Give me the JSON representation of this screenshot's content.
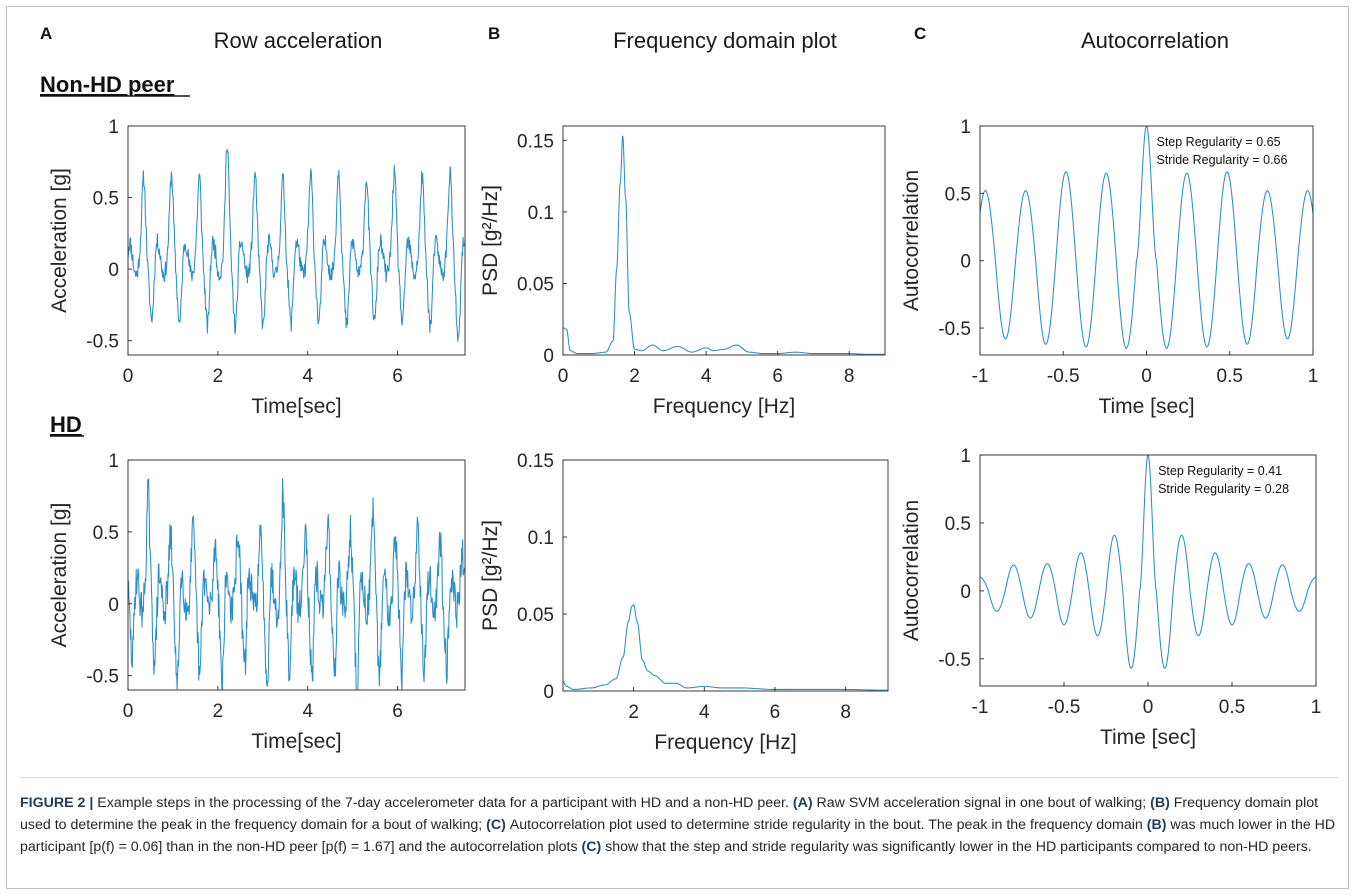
{
  "figure": {
    "caption_head": "FIGURE 2 |",
    "caption_parts": [
      {
        "t": "Example steps in the processing of the 7-day accelerometer data for a participant with HD and a non-HD peer. ",
        "b": false
      },
      {
        "t": "(A)",
        "b": true
      },
      {
        "t": " Raw SVM acceleration signal in one bout of walking; ",
        "b": false
      },
      {
        "t": "(B)",
        "b": true
      },
      {
        "t": " Frequency domain plot used to determine the peak in the frequency domain for a bout of walking; ",
        "b": false
      },
      {
        "t": "(C)",
        "b": true
      },
      {
        "t": " Autocorrelation plot used to determine stride regularity in the bout. The peak in the frequency domain ",
        "b": false
      },
      {
        "t": "(B)",
        "b": true
      },
      {
        "t": " was much lower in the HD participant [p(f) = 0.06] than in the non-HD peer [p(f) = 1.67] and the autocorrelation plots ",
        "b": false
      },
      {
        "t": "(C)",
        "b": true
      },
      {
        "t": " show that the step and stride regularity was significantly lower in the HD participants compared to non-HD peers.",
        "b": false
      }
    ]
  },
  "panels": {
    "A": {
      "letter": "A",
      "title": "Row acceleration"
    },
    "B": {
      "letter": "B",
      "title": "Frequency domain plot"
    },
    "C": {
      "letter": "C",
      "title": "Autocorrelation"
    }
  },
  "groups": {
    "top": "Non-HD peer",
    "bottom": "HD"
  },
  "colors": {
    "series": "#2a8ec6",
    "axes": "#262626"
  },
  "chart_data": [
    {
      "id": "acc_nonhd",
      "type": "line",
      "row": "top",
      "col": "A",
      "xlabel": "Time[sec]",
      "ylabel": "Acceleration [g]",
      "xlim": [
        0,
        7.5
      ],
      "ylim": [
        -0.6,
        1
      ],
      "xticks": [
        0,
        2,
        4,
        6
      ],
      "xtick_labels": [
        "0",
        "2",
        "4",
        "6"
      ],
      "yticks": [
        -0.5,
        0,
        0.5,
        1
      ],
      "ytick_labels": [
        "-0.5",
        "0",
        "0.5",
        "1"
      ],
      "signal": {
        "kind": "periodic",
        "period": 0.62,
        "t0": 0.35,
        "noise": 0.06,
        "seed": 11,
        "peaks": [
          0.52,
          0.55,
          0.53,
          0.78,
          0.55,
          0.52,
          0.55,
          0.58,
          0.52,
          0.56,
          0.53,
          0.57
        ],
        "troughs": [
          -0.27,
          -0.3,
          -0.32,
          -0.33,
          -0.32,
          -0.3,
          -0.3,
          -0.32,
          -0.29,
          -0.3,
          -0.32,
          -0.44
        ]
      }
    },
    {
      "id": "acc_hd",
      "type": "line",
      "row": "bottom",
      "col": "A",
      "xlabel": "Time[sec]",
      "ylabel": "Acceleration [g]",
      "xlim": [
        0,
        7.5
      ],
      "ylim": [
        -0.6,
        1
      ],
      "xticks": [
        0,
        2,
        4,
        6
      ],
      "xtick_labels": [
        "0",
        "2",
        "4",
        "6"
      ],
      "yticks": [
        -0.5,
        0,
        0.5,
        1
      ],
      "ytick_labels": [
        "-0.5",
        "0",
        "0.5",
        "1"
      ],
      "signal": {
        "kind": "periodic",
        "period": 0.5,
        "t0": 0.45,
        "noise": 0.13,
        "seed": 29,
        "peaks": [
          0.67,
          0.35,
          0.4,
          0.3,
          0.4,
          0.34,
          0.66,
          0.45,
          0.5,
          0.4,
          0.5,
          0.35,
          0.45,
          0.3,
          0.2
        ],
        "troughs": [
          -0.33,
          -0.52,
          -0.45,
          -0.48,
          -0.38,
          -0.46,
          -0.4,
          -0.48,
          -0.42,
          -0.55,
          -0.44,
          -0.4,
          -0.38,
          -0.35,
          -0.3
        ]
      }
    },
    {
      "id": "psd_nonhd",
      "type": "line",
      "row": "top",
      "col": "B",
      "xlabel": "Frequency [Hz]",
      "ylabel": "PSD [g²/Hz]",
      "xlim": [
        0,
        9
      ],
      "ylim": [
        0,
        0.16
      ],
      "xticks": [
        0,
        2,
        4,
        6,
        8
      ],
      "xtick_labels": [
        "0",
        "2",
        "4",
        "6",
        "8"
      ],
      "yticks": [
        0,
        0.05,
        0.1,
        0.15
      ],
      "ytick_labels": [
        "0",
        "0.05",
        "0.1",
        "0.15"
      ],
      "x": [
        0,
        0.1,
        0.2,
        0.4,
        0.8,
        1.2,
        1.4,
        1.5,
        1.6,
        1.67,
        1.75,
        1.85,
        2.0,
        2.2,
        2.5,
        2.8,
        3.2,
        3.6,
        4.0,
        4.2,
        4.5,
        4.85,
        5.2,
        5.6,
        6.0,
        6.5,
        7.0,
        7.5,
        8.0,
        8.5,
        9.0
      ],
      "y": [
        0.019,
        0.018,
        0.003,
        0.001,
        0.001,
        0.002,
        0.01,
        0.06,
        0.12,
        0.153,
        0.11,
        0.03,
        0.004,
        0.003,
        0.007,
        0.003,
        0.006,
        0.002,
        0.005,
        0.003,
        0.004,
        0.007,
        0.002,
        0.001,
        0.001,
        0.002,
        0.001,
        0.001,
        0.001,
        0.0005,
        0.0005
      ]
    },
    {
      "id": "psd_hd",
      "type": "line",
      "row": "bottom",
      "col": "B",
      "xlabel": "Frequency [Hz]",
      "ylabel": "PSD [g²/Hz]",
      "xlim": [
        0,
        9.2
      ],
      "ylim": [
        0,
        0.15
      ],
      "xticks": [
        2,
        4,
        6,
        8
      ],
      "xtick_labels": [
        "2",
        "4",
        "6",
        "8"
      ],
      "yticks": [
        0,
        0.05,
        0.1,
        0.15
      ],
      "ytick_labels": [
        "0",
        "0.05",
        "0.1",
        "0.15"
      ],
      "x": [
        0,
        0.1,
        0.3,
        0.8,
        1.2,
        1.5,
        1.7,
        1.85,
        1.95,
        2.0,
        2.1,
        2.25,
        2.4,
        2.6,
        2.9,
        3.2,
        3.5,
        4.0,
        4.5,
        5.0,
        6.0,
        7.0,
        8.0,
        9.2
      ],
      "y": [
        0.006,
        0.003,
        0.001,
        0.002,
        0.004,
        0.008,
        0.022,
        0.045,
        0.055,
        0.056,
        0.045,
        0.02,
        0.013,
        0.01,
        0.005,
        0.005,
        0.002,
        0.003,
        0.002,
        0.002,
        0.001,
        0.001,
        0.001,
        0.0005
      ]
    },
    {
      "id": "ac_nonhd",
      "type": "line",
      "row": "top",
      "col": "C",
      "xlabel": "Time [sec]",
      "ylabel": "Autocorrelation",
      "xlim": [
        -1,
        1
      ],
      "ylim": [
        -0.7,
        1
      ],
      "xticks": [
        -1,
        -0.5,
        0,
        0.5,
        1
      ],
      "xtick_labels": [
        "-1",
        "-0.5",
        "0",
        "0.5",
        "1"
      ],
      "yticks": [
        -0.5,
        0,
        0.5,
        1
      ],
      "ytick_labels": [
        "-0.5",
        "0",
        "0.5",
        "1"
      ],
      "signal": {
        "kind": "autocorr",
        "lag": 0.242,
        "peaks": [
          1,
          0.65,
          0.66,
          0.52,
          0.52
        ],
        "troughs": [
          -0.65,
          -0.64,
          -0.62,
          -0.58,
          -0.52
        ]
      },
      "annotations": [
        "Step Regularity = 0.65",
        "Stride Regularity = 0.66"
      ]
    },
    {
      "id": "ac_hd",
      "type": "line",
      "row": "bottom",
      "col": "C",
      "xlabel": "Time [sec]",
      "ylabel": "Autocorrelation",
      "xlim": [
        -1,
        1
      ],
      "ylim": [
        -0.7,
        1
      ],
      "xticks": [
        -1,
        -0.5,
        0,
        0.5,
        1
      ],
      "xtick_labels": [
        "-1",
        "-0.5",
        "0",
        "0.5",
        "1"
      ],
      "yticks": [
        -0.5,
        0,
        0.5,
        1
      ],
      "ytick_labels": [
        "-0.5",
        "0",
        "0.5",
        "1"
      ],
      "signal": {
        "kind": "autocorr",
        "lag": 0.2,
        "peaks": [
          1,
          0.41,
          0.28,
          0.2,
          0.19,
          0.1
        ],
        "troughs": [
          -0.57,
          -0.33,
          -0.25,
          -0.2,
          -0.15
        ]
      },
      "annotations": [
        "Step Regularity = 0.41",
        "Stride Regularity = 0.28"
      ]
    }
  ]
}
